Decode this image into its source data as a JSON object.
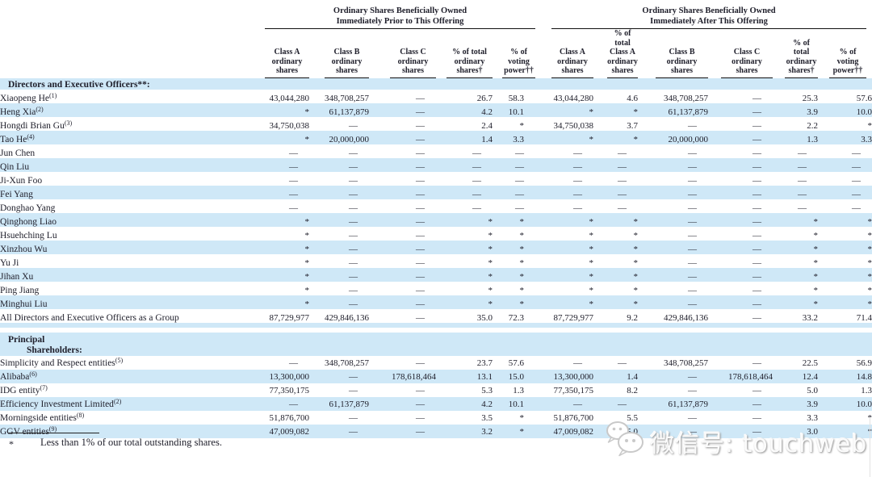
{
  "colors": {
    "row_highlight": "#cfe8f7",
    "rule": "#111111",
    "text": "#20202c",
    "watermark_gray": "#c9c9c9"
  },
  "table": {
    "group_headers": [
      {
        "lines": [
          "Ordinary Shares Beneficially Owned",
          "Immediately Prior to This Offering"
        ]
      },
      {
        "lines": [
          "Ordinary Shares Beneficially Owned",
          "Immediately After This Offering"
        ]
      }
    ],
    "columns": [
      {
        "lines": [
          "Class A",
          "ordinary",
          "shares"
        ]
      },
      {
        "lines": [
          "Class B",
          "ordinary",
          "shares"
        ]
      },
      {
        "lines": [
          "Class C",
          "ordinary",
          "shares"
        ]
      },
      {
        "lines": [
          "% of total",
          "ordinary",
          "shares†"
        ]
      },
      {
        "lines": [
          "% of",
          "voting",
          "power††"
        ]
      },
      {
        "lines": [
          "Class A",
          "ordinary",
          "shares"
        ]
      },
      {
        "lines": [
          "% of total",
          "Class A",
          "ordinary",
          "shares"
        ]
      },
      {
        "lines": [
          "Class B",
          "ordinary",
          "shares"
        ]
      },
      {
        "lines": [
          "Class C",
          "ordinary",
          "shares"
        ]
      },
      {
        "lines": [
          "% of",
          "total",
          "ordinary",
          "shares†"
        ]
      },
      {
        "lines": [
          "% of",
          "voting",
          "power††"
        ]
      }
    ],
    "rows": [
      {
        "type": "section",
        "label": "Directors and Executive Officers**:",
        "shaded": true
      },
      {
        "type": "data",
        "label": "Xiaopeng He",
        "fn": "(1)",
        "shaded": false,
        "cells": [
          "43,044,280",
          "348,708,257",
          "—",
          "26.7",
          "58.3",
          "43,044,280",
          "4.6",
          "348,708,257",
          "—",
          "25.3",
          "57.6"
        ]
      },
      {
        "type": "data",
        "label": "Heng Xia",
        "fn": "(2)",
        "shaded": true,
        "cells": [
          "*",
          "61,137,879",
          "—",
          "4.2",
          "10.1",
          "*",
          "*",
          "61,137,879",
          "—",
          "3.9",
          "10.0"
        ]
      },
      {
        "type": "data",
        "label": "Hongdi Brian Gu",
        "fn": "(3)",
        "shaded": false,
        "cells": [
          "34,750,038",
          "—",
          "—",
          "2.4",
          "*",
          "34,750,038",
          "3.7",
          "—",
          "—",
          "2.2",
          "*"
        ]
      },
      {
        "type": "data",
        "label": "Tao He",
        "fn": "(4)",
        "shaded": true,
        "cells": [
          "*",
          "20,000,000",
          "—",
          "1.4",
          "3.3",
          "*",
          "*",
          "20,000,000",
          "—",
          "1.3",
          "3.3"
        ]
      },
      {
        "type": "data",
        "label": "Jun Chen",
        "fn": "",
        "shaded": false,
        "cells": [
          "—",
          "—",
          "—",
          "—",
          "—",
          "—",
          "—",
          "—",
          "—",
          "—",
          "—"
        ]
      },
      {
        "type": "data",
        "label": "Qin Liu",
        "fn": "",
        "shaded": true,
        "cells": [
          "—",
          "—",
          "—",
          "—",
          "—",
          "—",
          "—",
          "—",
          "—",
          "—",
          "—"
        ]
      },
      {
        "type": "data",
        "label": "Ji-Xun Foo",
        "fn": "",
        "shaded": false,
        "cells": [
          "—",
          "—",
          "—",
          "—",
          "—",
          "—",
          "—",
          "—",
          "—",
          "—",
          "—"
        ]
      },
      {
        "type": "data",
        "label": "Fei Yang",
        "fn": "",
        "shaded": true,
        "cells": [
          "—",
          "—",
          "—",
          "—",
          "—",
          "—",
          "—",
          "—",
          "—",
          "—",
          "—"
        ]
      },
      {
        "type": "data",
        "label": "Donghao Yang",
        "fn": "",
        "shaded": false,
        "cells": [
          "—",
          "—",
          "—",
          "—",
          "—",
          "—",
          "—",
          "—",
          "—",
          "—",
          "—"
        ]
      },
      {
        "type": "data",
        "label": "Qinghong Liao",
        "fn": "",
        "shaded": true,
        "cells": [
          "*",
          "—",
          "—",
          "*",
          "*",
          "*",
          "*",
          "—",
          "—",
          "*",
          "*"
        ]
      },
      {
        "type": "data",
        "label": "Hsuehching Lu",
        "fn": "",
        "shaded": false,
        "cells": [
          "*",
          "—",
          "—",
          "*",
          "*",
          "*",
          "*",
          "—",
          "—",
          "*",
          "*"
        ]
      },
      {
        "type": "data",
        "label": "Xinzhou Wu",
        "fn": "",
        "shaded": true,
        "cells": [
          "*",
          "—",
          "—",
          "*",
          "*",
          "*",
          "*",
          "—",
          "—",
          "*",
          "*"
        ]
      },
      {
        "type": "data",
        "label": "Yu Ji",
        "fn": "",
        "shaded": false,
        "cells": [
          "*",
          "—",
          "—",
          "*",
          "*",
          "*",
          "*",
          "—",
          "—",
          "*",
          "*"
        ]
      },
      {
        "type": "data",
        "label": "Jihan Xu",
        "fn": "",
        "shaded": true,
        "cells": [
          "*",
          "—",
          "—",
          "*",
          "*",
          "*",
          "*",
          "—",
          "—",
          "*",
          "*"
        ]
      },
      {
        "type": "data",
        "label": "Ping Jiang",
        "fn": "",
        "shaded": false,
        "cells": [
          "*",
          "—",
          "—",
          "*",
          "*",
          "*",
          "*",
          "—",
          "—",
          "*",
          "*"
        ]
      },
      {
        "type": "data",
        "label": "Minghui Liu",
        "fn": "",
        "shaded": true,
        "cells": [
          "*",
          "—",
          "—",
          "*",
          "*",
          "*",
          "*",
          "—",
          "—",
          "*",
          "*"
        ]
      },
      {
        "type": "data",
        "label": "All Directors and Executive Officers as a Group",
        "fn": "",
        "shaded": false,
        "cells": [
          "87,729,977",
          "429,846,136",
          "—",
          "35.0",
          "72.3",
          "87,729,977",
          "9.2",
          "429,846,136",
          "—",
          "33.2",
          "71.4"
        ]
      },
      {
        "type": "spacer",
        "shaded": true
      },
      {
        "type": "spacer",
        "shaded": false
      },
      {
        "type": "section2",
        "label_lines": [
          "Principal",
          "Shareholders:"
        ],
        "shaded": true
      },
      {
        "type": "data",
        "label": "Simplicity and Respect entities",
        "fn": "(5)",
        "shaded": false,
        "cells": [
          "—",
          "348,708,257",
          "—",
          "23.7",
          "57.6",
          "—",
          "—",
          "348,708,257",
          "—",
          "22.5",
          "56.9"
        ]
      },
      {
        "type": "data",
        "label": "Alibaba",
        "fn": "(6)",
        "shaded": true,
        "cells": [
          "13,300,000",
          "—",
          "178,618,464",
          "13.1",
          "15.0",
          "13,300,000",
          "1.4",
          "—",
          "178,618,464",
          "12.4",
          "14.8"
        ]
      },
      {
        "type": "data",
        "label": "IDG entity",
        "fn": "(7)",
        "shaded": false,
        "cells": [
          "77,350,175",
          "—",
          "—",
          "5.3",
          "1.3",
          "77,350,175",
          "8.2",
          "—",
          "—",
          "5.0",
          "1.3"
        ]
      },
      {
        "type": "data",
        "label": "Efficiency Investment Limited",
        "fn": "(2)",
        "shaded": true,
        "cells": [
          "—",
          "61,137,879",
          "—",
          "4.2",
          "10.1",
          "—",
          "—",
          "61,137,879",
          "—",
          "3.9",
          "10.0"
        ]
      },
      {
        "type": "data",
        "label": "Morningside entities",
        "fn": "(8)",
        "shaded": false,
        "cells": [
          "51,876,700",
          "—",
          "—",
          "3.5",
          "*",
          "51,876,700",
          "5.5",
          "—",
          "—",
          "3.3",
          "*"
        ]
      },
      {
        "type": "data",
        "label": "GGV entities",
        "fn": "(9)",
        "shaded": true,
        "cells": [
          "47,009,082",
          "—",
          "—",
          "3.2",
          "*",
          "47,009,082",
          "5.0",
          "—",
          "—",
          "3.0",
          "*"
        ]
      }
    ]
  },
  "footnote": {
    "marker": "*",
    "text": "Less than 1% of our total outstanding shares."
  },
  "watermark": {
    "icon": "wechat-icon",
    "text": "微信号: touchweb"
  }
}
